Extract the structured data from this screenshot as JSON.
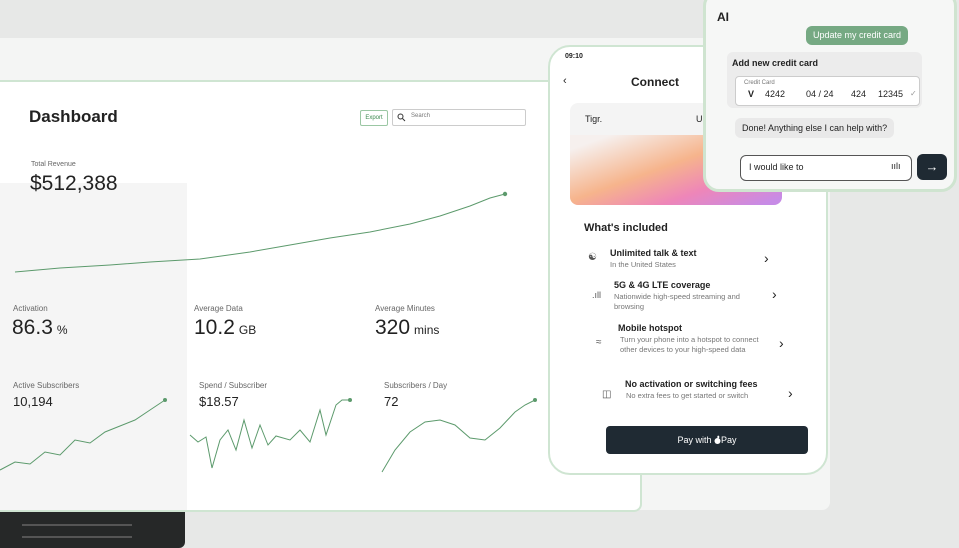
{
  "dashboard": {
    "title": "Dashboard",
    "export": "Export",
    "search_placeholder": "Search",
    "total_revenue": {
      "label": "Total Revenue",
      "value": "$512,388"
    },
    "metrics": [
      {
        "label": "Activation",
        "value": "86.3",
        "unit": "%"
      },
      {
        "label": "Average Data",
        "value": "10.2",
        "unit": "GB"
      },
      {
        "label": "Average Minutes",
        "value": "320",
        "unit": "mins"
      }
    ],
    "mini_charts": [
      {
        "label": "Active Subscribers",
        "value": "10,194"
      },
      {
        "label": "Spend / Subscriber",
        "value": "$18.57"
      },
      {
        "label": "Subscribers / Day",
        "value": "72"
      }
    ]
  },
  "phone": {
    "time": "09:10",
    "title": "Connect",
    "plan_card": {
      "brand": "Tigr.",
      "plan": "Unlin"
    },
    "section_title": "What's included",
    "features": [
      {
        "title": "Unlimited talk & text",
        "description": "In the United States"
      },
      {
        "title": "5G & 4G LTE coverage",
        "description": "Nationwide high-speed streaming and browsing"
      },
      {
        "title": "Mobile hotspot",
        "description": "Turn your phone into a hotspot to connect other devices to your high-speed data"
      },
      {
        "title": "No activation or switching fees",
        "description": "No extra fees to get started or switch"
      }
    ],
    "pay_button": {
      "before": "Pay with",
      "after": "Pay"
    }
  },
  "assistant": {
    "title": "AI",
    "user_message": "Update my credit card",
    "form": {
      "title": "Add new credit card",
      "field_label": "Credit Card",
      "card_number": "4242",
      "expiry": "04 / 24",
      "cvc": "424",
      "zip": "12345"
    },
    "reply": "Done! Anything else I can help with?",
    "input_value": "I would like to"
  }
}
